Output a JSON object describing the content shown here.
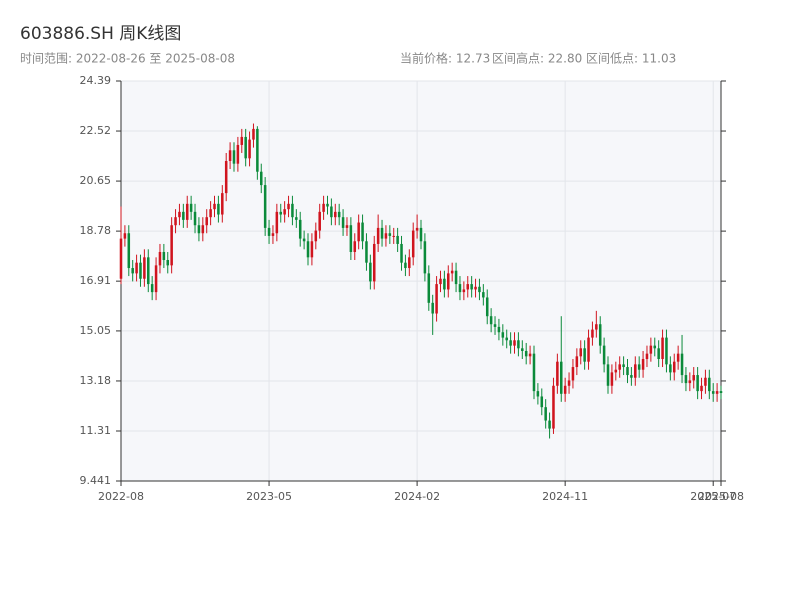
{
  "chart_data": {
    "type": "candlestick",
    "title": "603886.SH 周K线图",
    "subtitle": "时间范围: 2022-08-26 至 2025-08-08",
    "annotations": [
      "当前价格: 12.73",
      "区间高点: 22.80",
      "区间低点: 11.03"
    ],
    "up_color": "#d0141e",
    "down_color": "#0b8a3a",
    "grid": true,
    "ylim": [
      9.441,
      24.39
    ],
    "yticks": [
      9.441,
      11.31,
      13.18,
      15.05,
      16.91,
      18.78,
      20.65,
      22.52,
      24.39
    ],
    "xlim": [
      0,
      154
    ],
    "xticks": [
      {
        "value": 0,
        "label": "2022-08"
      },
      {
        "value": 38,
        "label": "2023-05"
      },
      {
        "value": 76,
        "label": "2024-02"
      },
      {
        "value": 114,
        "label": "2024-11"
      },
      {
        "value": 152,
        "label": "2025-07"
      },
      {
        "value": 154,
        "label": "2025-08"
      }
    ],
    "open": [
      17.0,
      18.5,
      18.7,
      17.4,
      17.2,
      17.6,
      17.0,
      17.8,
      16.8,
      16.5,
      17.5,
      18.0,
      17.7,
      17.5,
      19.0,
      19.3,
      19.5,
      19.2,
      19.8,
      19.5,
      19.0,
      18.7,
      19.0,
      19.3,
      19.6,
      19.8,
      19.4,
      20.2,
      21.4,
      21.8,
      21.3,
      22.0,
      22.3,
      21.5,
      22.2,
      22.6,
      21.0,
      20.5,
      18.9,
      18.6,
      18.7,
      19.5,
      19.4,
      19.6,
      19.8,
      19.3,
      19.2,
      18.5,
      18.4,
      17.8,
      18.4,
      18.8,
      19.5,
      19.8,
      19.7,
      19.3,
      19.5,
      19.3,
      18.9,
      19.0,
      18.0,
      18.4,
      19.1,
      18.4,
      17.6,
      16.9,
      18.3,
      18.9,
      18.5,
      18.7,
      18.6,
      18.6,
      18.3,
      17.6,
      17.4,
      17.8,
      18.8,
      18.9,
      18.4,
      17.2,
      16.1,
      15.7,
      16.8,
      17.0,
      16.6,
      17.2,
      17.3,
      16.8,
      16.5,
      16.6,
      16.8,
      16.6,
      16.7,
      16.5,
      16.3,
      15.6,
      15.3,
      15.2,
      15.0,
      14.8,
      14.7,
      14.5,
      14.7,
      14.4,
      14.3,
      14.1,
      14.2,
      12.8,
      12.6,
      12.2,
      11.7,
      11.4,
      13.0,
      13.9,
      12.7,
      13.0,
      13.2,
      13.7,
      14.1,
      14.4,
      13.9,
      14.8,
      15.1,
      15.3,
      14.5,
      13.8,
      13.0,
      13.5,
      13.6,
      13.8,
      13.7,
      13.4,
      13.3,
      13.8,
      13.6,
      14.0,
      14.2,
      14.5,
      14.4,
      14.0,
      14.8,
      13.8,
      13.5,
      13.9,
      14.2,
      13.4,
      13.1,
      13.2,
      13.4,
      12.8,
      13.0,
      13.3,
      12.8,
      12.7,
      12.8
    ],
    "high": [
      19.7,
      19.0,
      19.0,
      17.7,
      17.9,
      17.9,
      18.1,
      18.1,
      17.1,
      17.8,
      18.3,
      18.3,
      18.0,
      19.3,
      19.6,
      19.8,
      19.8,
      20.1,
      20.1,
      19.8,
      19.3,
      19.3,
      19.6,
      19.9,
      20.1,
      20.1,
      20.5,
      21.7,
      22.1,
      22.1,
      22.3,
      22.6,
      22.6,
      22.5,
      22.8,
      22.7,
      21.3,
      20.8,
      19.2,
      19.0,
      19.8,
      19.8,
      19.9,
      20.1,
      20.1,
      19.6,
      19.5,
      18.8,
      18.7,
      18.7,
      19.1,
      19.8,
      20.1,
      20.1,
      20.0,
      19.8,
      19.8,
      19.6,
      19.3,
      19.3,
      18.7,
      19.4,
      19.4,
      18.7,
      17.9,
      18.6,
      19.4,
      19.2,
      19.0,
      19.0,
      18.9,
      18.9,
      18.6,
      17.9,
      18.1,
      19.1,
      19.4,
      19.2,
      18.7,
      17.5,
      16.4,
      17.1,
      17.3,
      17.3,
      17.5,
      17.6,
      17.6,
      17.1,
      16.9,
      17.1,
      17.1,
      17.0,
      17.0,
      16.8,
      16.6,
      15.9,
      15.6,
      15.5,
      15.3,
      15.1,
      15.0,
      15.0,
      15.0,
      14.7,
      14.6,
      14.5,
      14.5,
      13.1,
      12.9,
      12.5,
      12.0,
      13.3,
      14.2,
      15.6,
      13.3,
      13.5,
      14.0,
      14.4,
      14.7,
      14.7,
      15.1,
      15.4,
      15.8,
      15.6,
      14.8,
      14.1,
      13.8,
      13.9,
      14.1,
      14.1,
      14.0,
      13.7,
      14.1,
      14.1,
      14.3,
      14.5,
      14.8,
      14.8,
      14.7,
      15.1,
      15.1,
      14.1,
      14.2,
      14.5,
      14.9,
      13.7,
      13.5,
      13.7,
      13.7,
      13.3,
      13.6,
      13.6,
      13.1,
      13.1,
      13.0
    ],
    "low": [
      16.8,
      18.2,
      17.1,
      16.9,
      16.9,
      16.7,
      16.7,
      16.5,
      16.2,
      16.2,
      17.2,
      17.4,
      17.2,
      17.2,
      18.7,
      19.0,
      18.9,
      18.9,
      19.2,
      18.7,
      18.4,
      18.4,
      18.7,
      19.0,
      19.3,
      19.1,
      19.1,
      19.9,
      21.1,
      21.0,
      21.0,
      21.7,
      21.2,
      21.2,
      21.9,
      20.7,
      20.2,
      18.6,
      18.3,
      18.3,
      18.4,
      19.1,
      19.1,
      19.3,
      19.0,
      18.9,
      18.2,
      18.1,
      17.5,
      17.5,
      18.1,
      18.5,
      19.2,
      19.4,
      19.0,
      19.0,
      19.0,
      18.6,
      18.6,
      17.7,
      17.7,
      18.1,
      18.1,
      17.3,
      16.6,
      16.6,
      18.0,
      18.2,
      18.2,
      18.3,
      18.3,
      18.0,
      17.3,
      17.1,
      17.1,
      17.5,
      18.5,
      18.1,
      16.9,
      15.8,
      14.9,
      15.4,
      16.5,
      16.3,
      16.3,
      16.9,
      16.5,
      16.2,
      16.2,
      16.3,
      16.3,
      16.3,
      16.2,
      16.0,
      15.3,
      15.0,
      14.9,
      14.7,
      14.5,
      14.4,
      14.2,
      14.2,
      14.1,
      14.0,
      13.8,
      13.8,
      12.5,
      12.3,
      11.9,
      11.4,
      11.03,
      11.2,
      12.7,
      12.4,
      12.4,
      12.7,
      12.9,
      13.4,
      13.8,
      13.6,
      13.6,
      14.5,
      14.8,
      14.2,
      13.5,
      12.7,
      12.7,
      13.2,
      13.3,
      13.4,
      13.1,
      13.0,
      13.0,
      13.3,
      13.3,
      13.7,
      13.9,
      14.1,
      13.7,
      13.7,
      13.5,
      13.2,
      13.2,
      13.6,
      13.1,
      12.8,
      12.8,
      12.9,
      12.5,
      12.5,
      12.7,
      12.5,
      12.4,
      12.4,
      12.5
    ],
    "close": [
      18.5,
      18.7,
      17.4,
      17.2,
      17.6,
      17.0,
      17.8,
      16.8,
      16.5,
      17.5,
      18.0,
      17.7,
      17.5,
      19.0,
      19.3,
      19.5,
      19.2,
      19.8,
      19.5,
      19.0,
      18.7,
      19.0,
      19.3,
      19.6,
      19.8,
      19.4,
      20.2,
      21.4,
      21.8,
      21.3,
      22.0,
      22.3,
      21.5,
      22.2,
      22.6,
      21.0,
      20.5,
      18.9,
      18.6,
      18.7,
      19.5,
      19.4,
      19.6,
      19.8,
      19.3,
      19.2,
      18.5,
      18.4,
      17.8,
      18.4,
      18.8,
      19.5,
      19.8,
      19.7,
      19.3,
      19.5,
      19.3,
      18.9,
      19.0,
      18.0,
      18.4,
      19.1,
      18.4,
      17.6,
      16.9,
      18.3,
      18.9,
      18.5,
      18.7,
      18.6,
      18.6,
      18.3,
      17.6,
      17.4,
      17.8,
      18.8,
      18.9,
      18.4,
      17.2,
      16.1,
      15.7,
      16.8,
      17.0,
      16.6,
      17.2,
      17.3,
      16.8,
      16.5,
      16.6,
      16.8,
      16.6,
      16.7,
      16.5,
      16.3,
      15.6,
      15.3,
      15.2,
      15.0,
      14.8,
      14.7,
      14.5,
      14.7,
      14.4,
      14.3,
      14.1,
      14.2,
      12.8,
      12.6,
      12.2,
      11.7,
      11.4,
      13.0,
      13.9,
      12.7,
      13.0,
      13.2,
      13.7,
      14.1,
      14.4,
      13.9,
      14.8,
      15.1,
      15.3,
      14.5,
      13.8,
      13.0,
      13.5,
      13.6,
      13.8,
      13.7,
      13.4,
      13.3,
      13.8,
      13.6,
      14.0,
      14.2,
      14.5,
      14.4,
      14.0,
      14.8,
      13.8,
      13.5,
      13.9,
      14.2,
      13.4,
      13.1,
      13.2,
      13.4,
      12.8,
      13.0,
      13.3,
      12.8,
      12.7,
      12.8,
      12.73
    ]
  }
}
